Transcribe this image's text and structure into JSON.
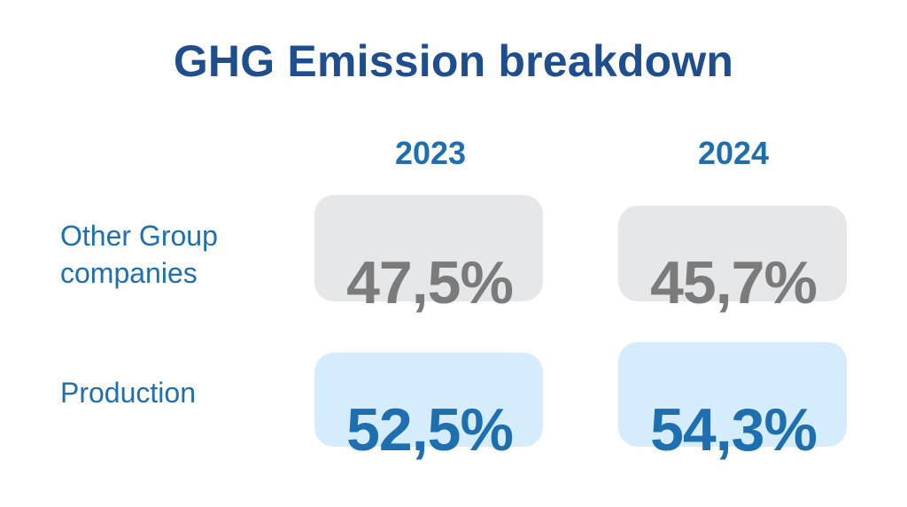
{
  "title": "GHG Emission breakdown",
  "colors": {
    "title": "#1f4e8f",
    "accent_blue": "#1d6fb0",
    "other_tile": "#e6e7e9",
    "other_value": "#7b7b7b",
    "production_tile": "#d4ecfb"
  },
  "chart_data": {
    "type": "table",
    "title": "GHG Emission breakdown",
    "columns": [
      "2023",
      "2024"
    ],
    "rows": [
      {
        "label_lines": [
          "Other Group",
          "companies"
        ],
        "values": [
          "47,5%",
          "45,7%"
        ]
      },
      {
        "label_lines": [
          "Production"
        ],
        "values": [
          "52,5%",
          "54,3%"
        ]
      }
    ]
  }
}
